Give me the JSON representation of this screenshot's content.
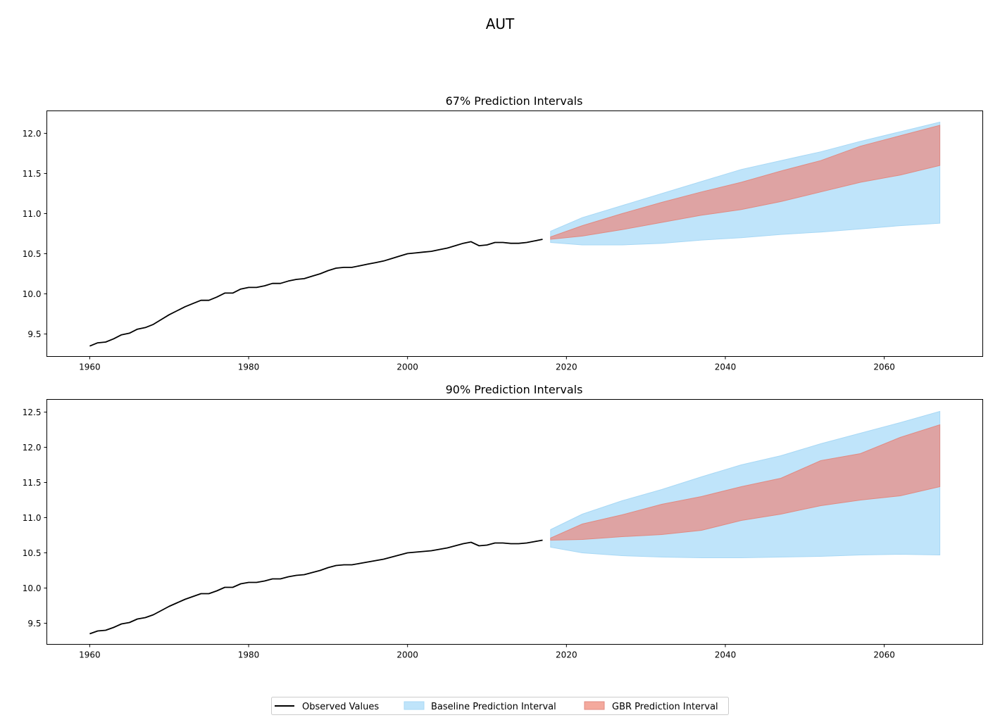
{
  "suptitle": "AUT",
  "colors": {
    "observed": "#000000",
    "baseline_fill": "#bfe4fa",
    "baseline_edge": "#a8d8f5",
    "gbr_fill": "#dea3a3",
    "gbr_edge": "#e08a82",
    "gbr_legend": "#f4a99d"
  },
  "legend": {
    "position": "bottom-center",
    "items": [
      {
        "label": "Observed Values",
        "kind": "line"
      },
      {
        "label": "Baseline Prediction Interval",
        "kind": "baseline"
      },
      {
        "label": "GBR Prediction Interval",
        "kind": "gbr"
      }
    ]
  },
  "chart_data": [
    {
      "type": "line",
      "title": "67% Prediction Intervals",
      "xlim": [
        1954.6,
        2072.4
      ],
      "ylim": [
        9.22,
        12.28
      ],
      "xticks": [
        1960,
        1980,
        2000,
        2020,
        2040,
        2060
      ],
      "yticks": [
        9.5,
        10.0,
        10.5,
        11.0,
        11.5,
        12.0
      ],
      "observed": {
        "x": [
          1960,
          1961,
          1962,
          1963,
          1964,
          1965,
          1966,
          1967,
          1968,
          1969,
          1970,
          1971,
          1972,
          1973,
          1974,
          1975,
          1976,
          1977,
          1978,
          1979,
          1980,
          1981,
          1982,
          1983,
          1984,
          1985,
          1986,
          1987,
          1988,
          1989,
          1990,
          1991,
          1992,
          1993,
          1994,
          1995,
          1996,
          1997,
          1998,
          1999,
          2000,
          2001,
          2002,
          2003,
          2004,
          2005,
          2006,
          2007,
          2008,
          2009,
          2010,
          2011,
          2012,
          2013,
          2014,
          2015,
          2016,
          2017
        ],
        "y": [
          9.35,
          9.39,
          9.4,
          9.44,
          9.49,
          9.51,
          9.56,
          9.58,
          9.62,
          9.68,
          9.74,
          9.79,
          9.84,
          9.88,
          9.92,
          9.92,
          9.96,
          10.01,
          10.01,
          10.06,
          10.08,
          10.08,
          10.1,
          10.13,
          10.13,
          10.16,
          10.18,
          10.19,
          10.22,
          10.25,
          10.29,
          10.32,
          10.33,
          10.33,
          10.35,
          10.37,
          10.39,
          10.41,
          10.44,
          10.47,
          10.5,
          10.51,
          10.52,
          10.53,
          10.55,
          10.57,
          10.6,
          10.63,
          10.65,
          10.6,
          10.61,
          10.64,
          10.64,
          10.63,
          10.63,
          10.64,
          10.66,
          10.68
        ]
      },
      "baseline_interval": {
        "x": [
          2018,
          2022,
          2027,
          2032,
          2037,
          2042,
          2047,
          2052,
          2057,
          2062,
          2067
        ],
        "lower": [
          10.64,
          10.61,
          10.61,
          10.63,
          10.67,
          10.7,
          10.74,
          10.77,
          10.81,
          10.85,
          10.88
        ],
        "upper": [
          10.78,
          10.95,
          11.1,
          11.25,
          11.4,
          11.55,
          11.66,
          11.77,
          11.9,
          12.02,
          12.14
        ]
      },
      "gbr_interval": {
        "x": [
          2018,
          2022,
          2027,
          2032,
          2037,
          2042,
          2047,
          2052,
          2057,
          2062,
          2067
        ],
        "lower": [
          10.68,
          10.72,
          10.8,
          10.89,
          10.98,
          11.05,
          11.15,
          11.27,
          11.39,
          11.48,
          11.6
        ],
        "upper": [
          10.71,
          10.85,
          11.0,
          11.14,
          11.27,
          11.39,
          11.53,
          11.66,
          11.84,
          11.97,
          12.1
        ]
      }
    },
    {
      "type": "line",
      "title": "90% Prediction Intervals",
      "xlim": [
        1954.6,
        2072.4
      ],
      "ylim": [
        9.2,
        12.68
      ],
      "xticks": [
        1960,
        1980,
        2000,
        2020,
        2040,
        2060
      ],
      "yticks": [
        9.5,
        10.0,
        10.5,
        11.0,
        11.5,
        12.0,
        12.5
      ],
      "observed": {
        "x": [
          1960,
          1961,
          1962,
          1963,
          1964,
          1965,
          1966,
          1967,
          1968,
          1969,
          1970,
          1971,
          1972,
          1973,
          1974,
          1975,
          1976,
          1977,
          1978,
          1979,
          1980,
          1981,
          1982,
          1983,
          1984,
          1985,
          1986,
          1987,
          1988,
          1989,
          1990,
          1991,
          1992,
          1993,
          1994,
          1995,
          1996,
          1997,
          1998,
          1999,
          2000,
          2001,
          2002,
          2003,
          2004,
          2005,
          2006,
          2007,
          2008,
          2009,
          2010,
          2011,
          2012,
          2013,
          2014,
          2015,
          2016,
          2017
        ],
        "y": [
          9.35,
          9.39,
          9.4,
          9.44,
          9.49,
          9.51,
          9.56,
          9.58,
          9.62,
          9.68,
          9.74,
          9.79,
          9.84,
          9.88,
          9.92,
          9.92,
          9.96,
          10.01,
          10.01,
          10.06,
          10.08,
          10.08,
          10.1,
          10.13,
          10.13,
          10.16,
          10.18,
          10.19,
          10.22,
          10.25,
          10.29,
          10.32,
          10.33,
          10.33,
          10.35,
          10.37,
          10.39,
          10.41,
          10.44,
          10.47,
          10.5,
          10.51,
          10.52,
          10.53,
          10.55,
          10.57,
          10.6,
          10.63,
          10.65,
          10.6,
          10.61,
          10.64,
          10.64,
          10.63,
          10.63,
          10.64,
          10.66,
          10.68
        ]
      },
      "baseline_interval": {
        "x": [
          2018,
          2022,
          2027,
          2032,
          2037,
          2042,
          2047,
          2052,
          2057,
          2062,
          2067
        ],
        "lower": [
          10.58,
          10.5,
          10.46,
          10.44,
          10.43,
          10.43,
          10.44,
          10.45,
          10.47,
          10.48,
          10.47
        ],
        "upper": [
          10.83,
          11.05,
          11.24,
          11.4,
          11.58,
          11.75,
          11.88,
          12.05,
          12.2,
          12.35,
          12.51
        ]
      },
      "gbr_interval": {
        "x": [
          2018,
          2022,
          2027,
          2032,
          2037,
          2042,
          2047,
          2052,
          2057,
          2062,
          2067
        ],
        "lower": [
          10.68,
          10.69,
          10.73,
          10.76,
          10.82,
          10.96,
          11.05,
          11.17,
          11.25,
          11.31,
          11.44
        ],
        "upper": [
          10.71,
          10.91,
          11.04,
          11.19,
          11.3,
          11.44,
          11.56,
          11.81,
          11.91,
          12.14,
          12.32
        ]
      }
    }
  ]
}
